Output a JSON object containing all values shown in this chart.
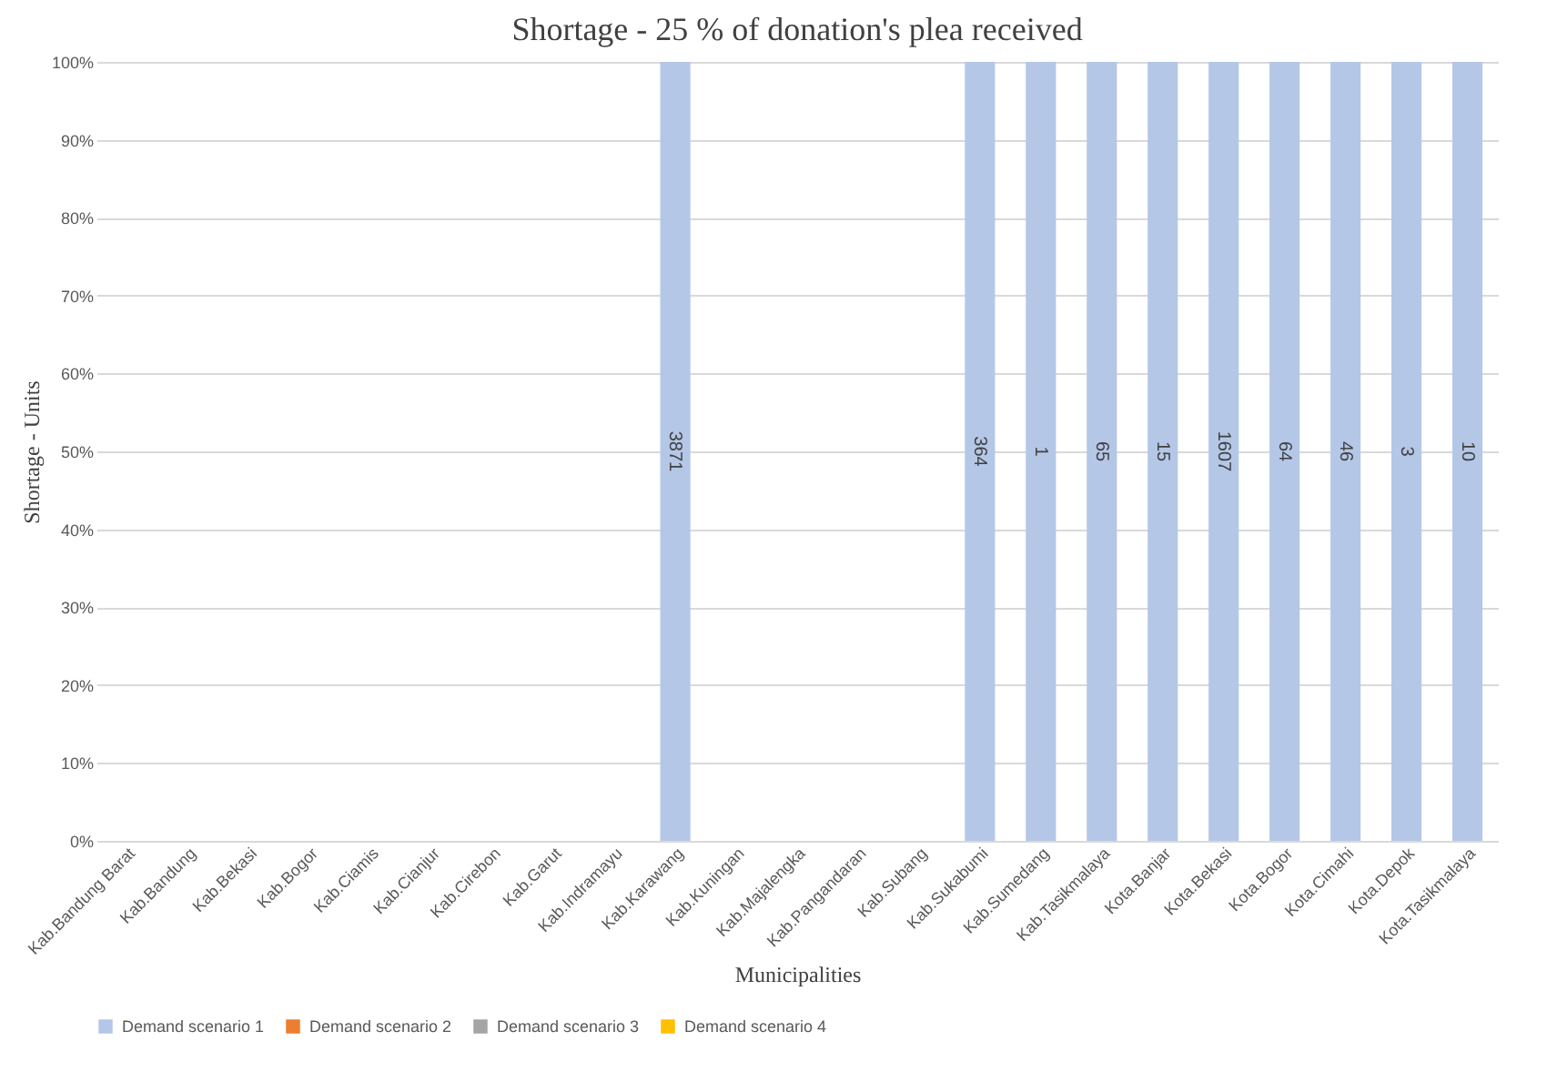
{
  "chart_data": {
    "type": "bar",
    "title": "Shortage - 25 % of donation's plea received",
    "xlabel": "Municipalities",
    "ylabel": "Shortage - Units",
    "stacked": true,
    "grid": "y",
    "legend": "bottom",
    "categories": [
      "Kab.Bandung Barat",
      "Kab.Bandung",
      "Kab.Bekasi",
      "Kab.Bogor",
      "Kab.Ciamis",
      "Kab.Cianjur",
      "Kab.Cirebon",
      "Kab.Garut",
      "Kab.Indramayu",
      "Kab.Karawang",
      "Kab.Kuningan",
      "Kab.Majalengka",
      "Kab.Pangandaran",
      "Kab.Subang",
      "Kab.Sukabumi",
      "Kab.Sumedang",
      "Kab.Tasikmalaya",
      "Kota.Banjar",
      "Kota.Bekasi",
      "Kota.Bogor",
      "Kota.Cimahi",
      "Kota.Depok",
      "Kota.Tasikmalaya"
    ],
    "ylim": [
      0,
      100
    ],
    "yticks": [
      {
        "value": 0,
        "label": "0%"
      },
      {
        "value": 10,
        "label": "10%"
      },
      {
        "value": 20,
        "label": "20%"
      },
      {
        "value": 30,
        "label": "30%"
      },
      {
        "value": 40,
        "label": "40%"
      },
      {
        "value": 50,
        "label": "50%"
      },
      {
        "value": 60,
        "label": "60%"
      },
      {
        "value": 70,
        "label": "70%"
      },
      {
        "value": 80,
        "label": "80%"
      },
      {
        "value": 90,
        "label": "90%"
      },
      {
        "value": 100,
        "label": "100%"
      }
    ],
    "series": [
      {
        "name": "Demand scenario 1",
        "color": "#b4c7e7",
        "values": [
          null,
          null,
          null,
          null,
          null,
          null,
          null,
          null,
          null,
          100,
          null,
          null,
          null,
          null,
          100,
          100,
          100,
          100,
          100,
          100,
          100,
          100,
          100
        ]
      },
      {
        "name": "Demand scenario 2",
        "color": "#ed7d31",
        "values": [
          null,
          null,
          null,
          null,
          null,
          null,
          null,
          null,
          null,
          null,
          null,
          null,
          null,
          null,
          null,
          null,
          null,
          null,
          null,
          null,
          null,
          null,
          null
        ]
      },
      {
        "name": "Demand scenario 3",
        "color": "#a5a5a5",
        "values": [
          null,
          null,
          null,
          null,
          null,
          null,
          null,
          null,
          null,
          null,
          null,
          null,
          null,
          null,
          null,
          null,
          null,
          null,
          null,
          null,
          null,
          null,
          null
        ]
      },
      {
        "name": "Demand scenario 4",
        "color": "#ffc000",
        "values": [
          null,
          null,
          null,
          null,
          null,
          null,
          null,
          null,
          null,
          null,
          null,
          null,
          null,
          null,
          null,
          null,
          null,
          null,
          null,
          null,
          null,
          null,
          null
        ]
      }
    ],
    "annotations": [
      "3871",
      "364",
      "1",
      "65",
      "15",
      "1607",
      "64",
      "46",
      "3",
      "10"
    ]
  }
}
